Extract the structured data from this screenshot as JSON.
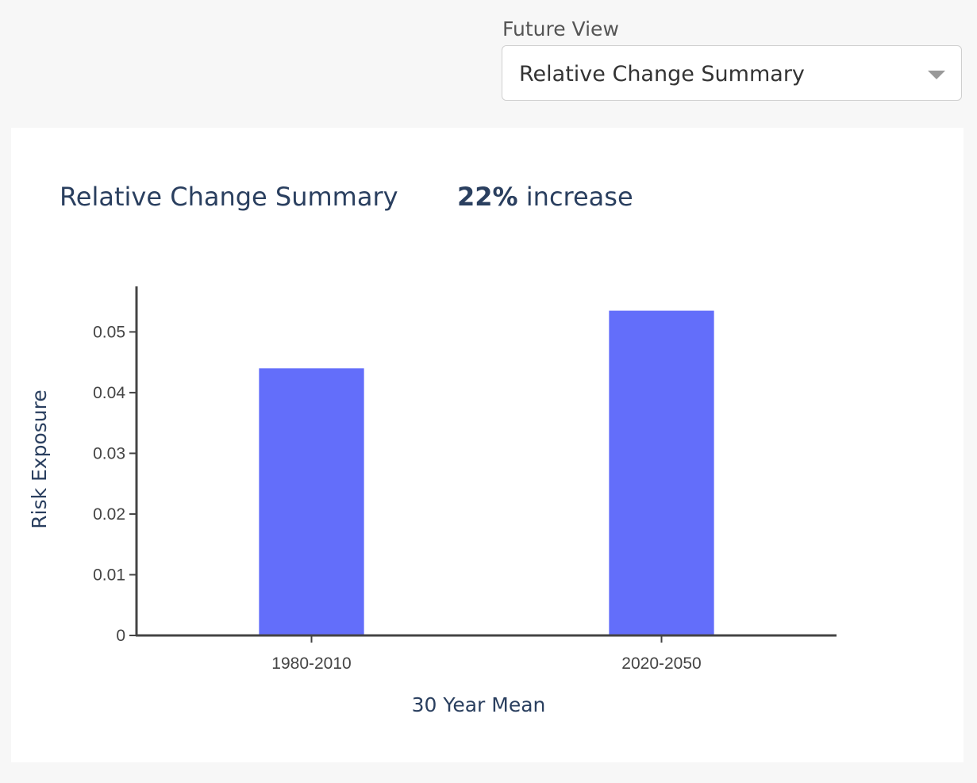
{
  "control": {
    "label": "Future View",
    "selected": "Relative Change Summary"
  },
  "summary": {
    "title": "Relative Change Summary",
    "percent": "22%",
    "suffix": " increase"
  },
  "chart_data": {
    "type": "bar",
    "categories": [
      "1980-2010",
      "2020-2050"
    ],
    "values": [
      0.044,
      0.0535
    ],
    "xlabel": "30 Year Mean",
    "ylabel": "Risk Exposure",
    "ylim": [
      0,
      0.0575
    ],
    "yticks": [
      0,
      0.01,
      0.02,
      0.03,
      0.04,
      0.05
    ],
    "ytick_labels": [
      "0",
      "0.01",
      "0.02",
      "0.03",
      "0.04",
      "0.05"
    ],
    "bar_color": "#636efa",
    "grid": false,
    "legend": false
  }
}
